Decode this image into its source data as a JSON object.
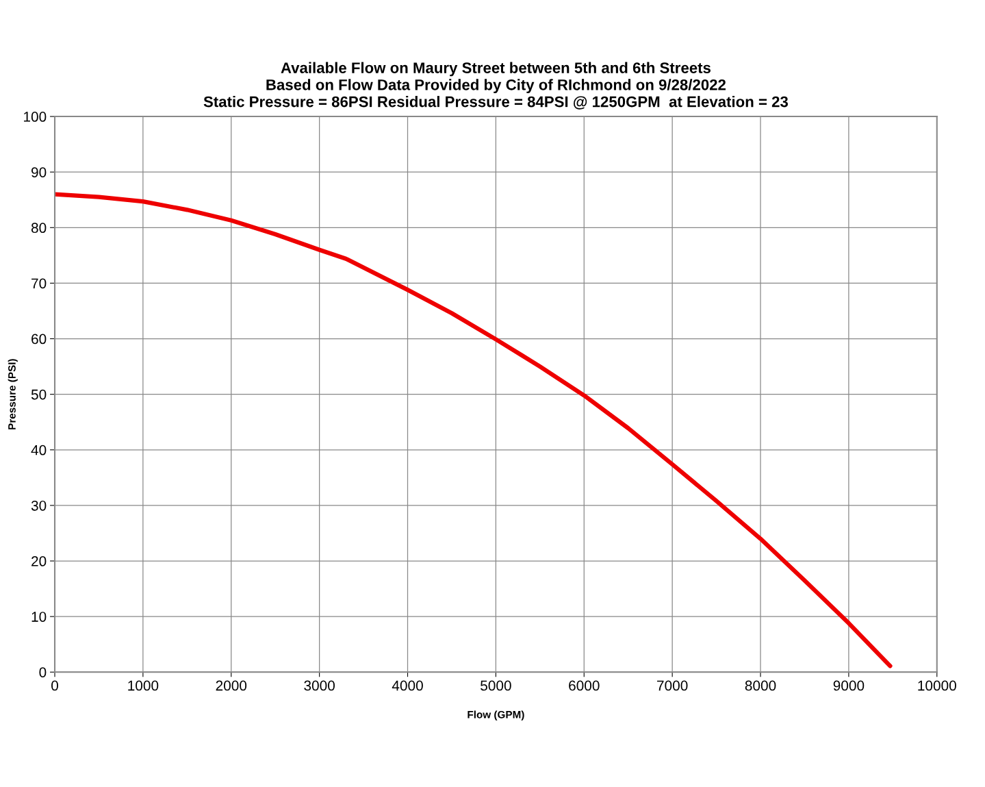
{
  "chart_data": {
    "type": "line",
    "title": "Available Flow on Maury Street between 5th and 6th Streets\nBased on Flow Data Provided by City of RIchmond on 9/28/2022\nStatic Pressure = 86PSI Residual Pressure = 84PSI @ 1250GPM  at Elevation = 23",
    "xlabel": "Flow (GPM)",
    "ylabel": "Pressure (PSI)",
    "x": [
      0,
      500,
      1000,
      1500,
      2000,
      2500,
      3000,
      3300,
      4000,
      4500,
      5000,
      5500,
      6000,
      6500,
      7000,
      7500,
      8000,
      8500,
      9000,
      9470
    ],
    "series": [
      {
        "color": "#ee0000",
        "values": [
          86.0,
          85.5,
          84.7,
          83.2,
          81.3,
          78.8,
          76.0,
          74.4,
          68.8,
          64.6,
          59.9,
          55.0,
          49.8,
          43.9,
          37.4,
          30.8,
          24.0,
          16.5,
          8.8,
          1.1
        ]
      }
    ],
    "xlim": [
      0,
      10000
    ],
    "xticks": [
      0,
      1000,
      2000,
      3000,
      4000,
      5000,
      6000,
      7000,
      8000,
      9000,
      10000
    ],
    "ylim": [
      0,
      100
    ],
    "yticks": [
      0,
      10,
      20,
      30,
      40,
      50,
      60,
      70,
      80,
      90,
      100
    ],
    "grid": true,
    "legend": false,
    "marker": "none",
    "line_style": "solid"
  }
}
